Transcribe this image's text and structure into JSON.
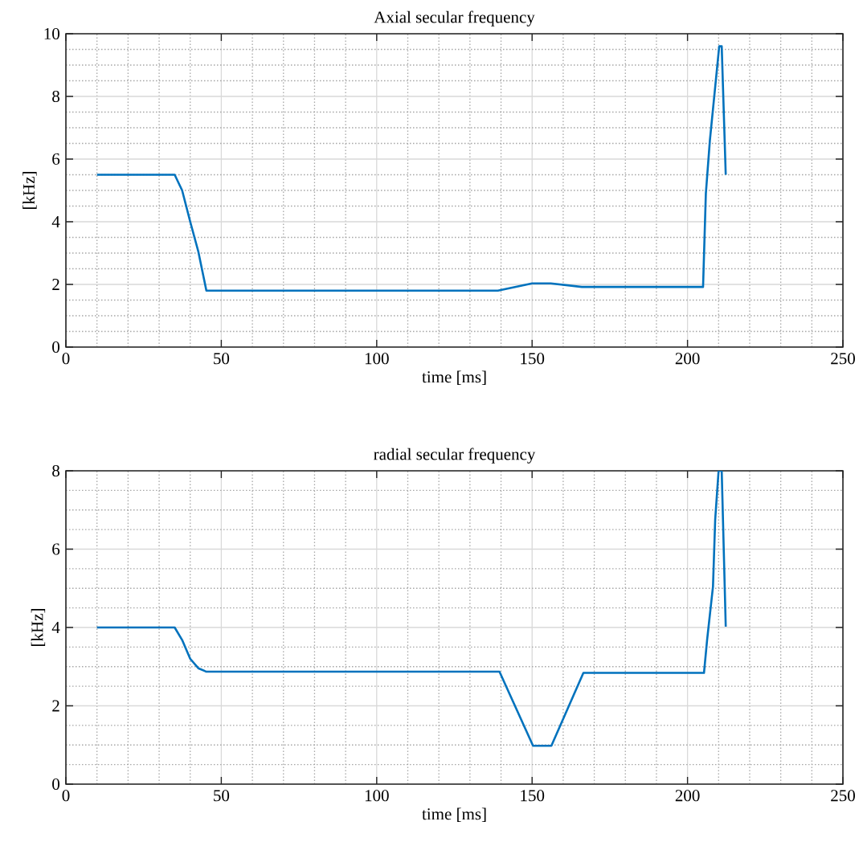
{
  "chart_data": [
    {
      "type": "line",
      "title": "Axial secular frequency",
      "xlabel": "time [ms]",
      "ylabel": "[kHz]",
      "xlim": [
        0,
        250
      ],
      "ylim": [
        0,
        10
      ],
      "xticks": [
        0,
        50,
        100,
        150,
        200,
        250
      ],
      "yticks": [
        0,
        2,
        4,
        6,
        8,
        10
      ],
      "grid": true,
      "series": [
        {
          "color": "#0072bd",
          "x": [
            10,
            35,
            37.4,
            40,
            42.6,
            45.2,
            139,
            150,
            156,
            166,
            205,
            205.9,
            207.2,
            208.9,
            210.2,
            211,
            212.3
          ],
          "values": [
            5.5,
            5.5,
            5.0,
            4.0,
            3.05,
            1.8,
            1.8,
            2.03,
            2.03,
            1.92,
            1.92,
            4.9,
            6.6,
            8.3,
            9.6,
            9.6,
            5.5
          ]
        }
      ]
    },
    {
      "type": "line",
      "title": "radial secular frequency",
      "xlabel": "time [ms]",
      "ylabel": "[kHz]",
      "xlim": [
        0,
        250
      ],
      "ylim": [
        0,
        8
      ],
      "xticks": [
        0,
        50,
        100,
        150,
        200,
        250
      ],
      "yticks": [
        0,
        2,
        4,
        6,
        8
      ],
      "grid": true,
      "series": [
        {
          "color": "#0072bd",
          "x": [
            10,
            35,
            37.4,
            40,
            42.6,
            45.2,
            139.5,
            150.3,
            156.2,
            166.5,
            205.3,
            206.3,
            208.2,
            208.9,
            210,
            211,
            212.3
          ],
          "values": [
            4.0,
            4.0,
            3.68,
            3.2,
            2.96,
            2.87,
            2.87,
            0.98,
            0.98,
            2.84,
            2.84,
            3.68,
            5.05,
            6.75,
            8.0,
            8.0,
            4.02
          ]
        }
      ]
    }
  ]
}
